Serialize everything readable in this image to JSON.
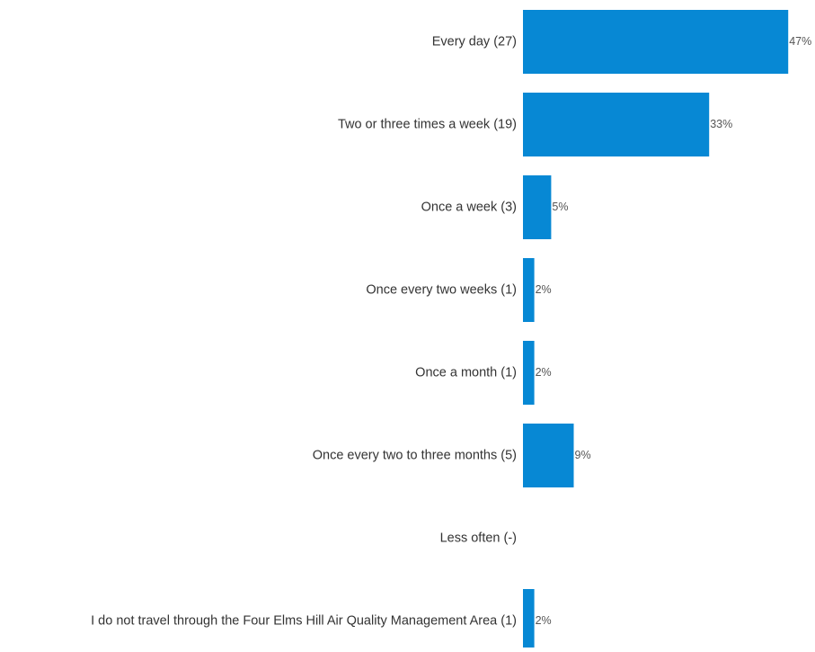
{
  "chart_data": {
    "type": "bar",
    "orientation": "horizontal",
    "bar_color": "#0788D4",
    "label_color": "#333333",
    "value_label_color": "#555555",
    "background": "#FFFFFF",
    "grid": false,
    "legend": "none",
    "xlim": [
      0,
      50
    ],
    "categories": [
      "Every day (27)",
      "Two or three times a week (19)",
      "Once a week (3)",
      "Once every two weeks (1)",
      "Once a month (1)",
      "Once every two to three months (5)",
      "Less often (-)",
      "I do not travel through the Four Elms Hill Air Quality Management Area (1)"
    ],
    "values": [
      47,
      33,
      5,
      2,
      2,
      9,
      0,
      2
    ],
    "value_labels": [
      "47%",
      "33%",
      "5%",
      "2%",
      "2%",
      "9%",
      "",
      "2%"
    ]
  }
}
